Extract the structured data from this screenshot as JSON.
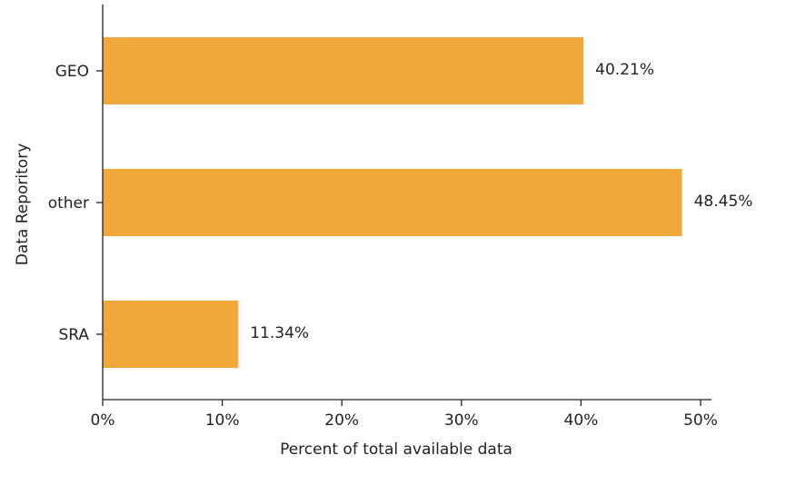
{
  "chart_data": {
    "type": "bar",
    "orientation": "horizontal",
    "categories": [
      "GEO",
      "other",
      "SRA"
    ],
    "values": [
      40.21,
      48.45,
      11.34
    ],
    "value_labels": [
      "40.21%",
      "48.45%",
      "11.34%"
    ],
    "xlabel": "Percent of total available data",
    "ylabel": "Data Reporitory",
    "xlim": [
      0,
      50
    ],
    "x_ticks": [
      0,
      10,
      20,
      30,
      40,
      50
    ],
    "x_tick_labels": [
      "0%",
      "10%",
      "20%",
      "30%",
      "40%",
      "50%"
    ],
    "bar_color": "#F0A83A",
    "grid": false,
    "legend": "none"
  }
}
